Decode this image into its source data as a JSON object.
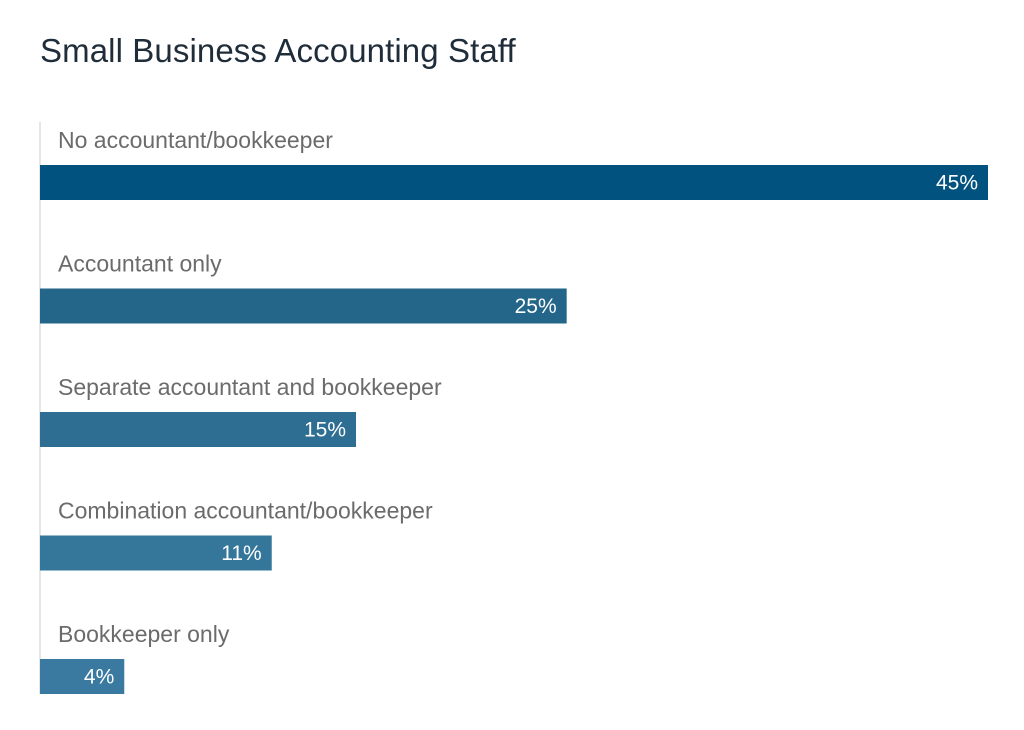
{
  "chart_data": {
    "type": "bar",
    "orientation": "horizontal",
    "title": "Small Business Accounting Staff",
    "categories": [
      "No accountant/bookkeeper",
      "Accountant only",
      "Separate accountant and bookkeeper",
      "Combination accountant/bookkeeper",
      "Bookkeeper only"
    ],
    "values": [
      45,
      25,
      15,
      11,
      4
    ],
    "value_labels": [
      "45%",
      "25%",
      "15%",
      "11%",
      "4%"
    ],
    "unit": "%",
    "xlim": [
      0,
      45
    ],
    "grid": false,
    "legend": "none",
    "colors": [
      "#02527f",
      "#236689",
      "#2e6e92",
      "#35769b",
      "#3a7aa0"
    ]
  }
}
